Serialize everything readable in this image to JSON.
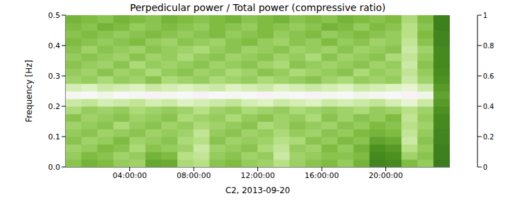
{
  "chart_data": {
    "type": "heatmap",
    "title": "Perpedicular power / Total power (compressive ratio)",
    "x_label": "C2, 2013-09-20",
    "y_label": "Frequency [Hz]",
    "xlim": [
      0,
      24
    ],
    "xticks": [
      {
        "value": 4,
        "label": "04:00:00"
      },
      {
        "value": 8,
        "label": "08:00:00"
      },
      {
        "value": 12,
        "label": "12:00:00"
      },
      {
        "value": 16,
        "label": "16:00:00"
      },
      {
        "value": 20,
        "label": "20:00:00"
      }
    ],
    "ylim": [
      0,
      0.5
    ],
    "yticks": [
      {
        "value": 0,
        "label": "0.0"
      },
      0.1,
      0.2,
      0.3,
      0.4,
      0.5
    ],
    "x": [
      0.5,
      1.5,
      2.5,
      3.5,
      4.5,
      5.5,
      6.5,
      7.5,
      8.5,
      9.5,
      10.5,
      11.5,
      12.5,
      13.5,
      14.5,
      15.5,
      16.5,
      17.5,
      18.5,
      19.5,
      20.5,
      21.5,
      22.5,
      23.5
    ],
    "y": [
      0.0125,
      0.0375,
      0.0625,
      0.0875,
      0.1125,
      0.1375,
      0.1625,
      0.1875,
      0.2125,
      0.2375,
      0.2625,
      0.2875,
      0.3125,
      0.3375,
      0.3625,
      0.3875,
      0.4125,
      0.4375,
      0.4625,
      0.4875
    ],
    "values": [
      [
        0.78,
        0.82,
        0.8,
        0.76,
        0.74,
        0.85,
        0.84,
        0.72,
        0.7,
        0.78,
        0.8,
        0.76,
        0.74,
        0.7,
        0.75,
        0.78,
        0.8,
        0.76,
        0.82,
        0.93,
        0.92,
        0.8,
        0.76,
        0.95
      ],
      [
        0.76,
        0.8,
        0.78,
        0.74,
        0.76,
        0.82,
        0.8,
        0.7,
        0.68,
        0.76,
        0.78,
        0.74,
        0.76,
        0.66,
        0.74,
        0.76,
        0.78,
        0.78,
        0.8,
        0.92,
        0.9,
        0.74,
        0.78,
        0.94
      ],
      [
        0.74,
        0.76,
        0.8,
        0.78,
        0.72,
        0.78,
        0.76,
        0.74,
        0.66,
        0.74,
        0.76,
        0.78,
        0.72,
        0.68,
        0.76,
        0.74,
        0.8,
        0.76,
        0.82,
        0.9,
        0.88,
        0.7,
        0.76,
        0.94
      ],
      [
        0.78,
        0.74,
        0.76,
        0.8,
        0.74,
        0.76,
        0.78,
        0.72,
        0.7,
        0.78,
        0.74,
        0.76,
        0.74,
        0.7,
        0.72,
        0.78,
        0.76,
        0.8,
        0.78,
        0.86,
        0.84,
        0.66,
        0.78,
        0.93
      ],
      [
        0.76,
        0.78,
        0.74,
        0.76,
        0.78,
        0.74,
        0.76,
        0.74,
        0.68,
        0.76,
        0.78,
        0.74,
        0.76,
        0.72,
        0.76,
        0.74,
        0.78,
        0.76,
        0.8,
        0.82,
        0.8,
        0.68,
        0.76,
        0.93
      ],
      [
        0.74,
        0.76,
        0.78,
        0.72,
        0.76,
        0.78,
        0.74,
        0.76,
        0.72,
        0.74,
        0.76,
        0.78,
        0.72,
        0.74,
        0.78,
        0.76,
        0.74,
        0.78,
        0.76,
        0.8,
        0.78,
        0.7,
        0.74,
        0.92
      ],
      [
        0.78,
        0.74,
        0.76,
        0.78,
        0.74,
        0.76,
        0.78,
        0.72,
        0.74,
        0.76,
        0.72,
        0.76,
        0.78,
        0.74,
        0.76,
        0.72,
        0.78,
        0.74,
        0.78,
        0.76,
        0.8,
        0.68,
        0.76,
        0.92
      ],
      [
        0.72,
        0.76,
        0.74,
        0.76,
        0.72,
        0.74,
        0.76,
        0.74,
        0.7,
        0.74,
        0.76,
        0.72,
        0.74,
        0.76,
        0.72,
        0.74,
        0.76,
        0.74,
        0.72,
        0.76,
        0.74,
        0.7,
        0.74,
        0.9
      ],
      [
        0.66,
        0.68,
        0.64,
        0.66,
        0.68,
        0.64,
        0.66,
        0.62,
        0.64,
        0.66,
        0.68,
        0.64,
        0.62,
        0.66,
        0.64,
        0.62,
        0.66,
        0.64,
        0.66,
        0.68,
        0.64,
        0.6,
        0.66,
        0.88
      ],
      [
        0.52,
        0.5,
        0.54,
        0.5,
        0.52,
        0.48,
        0.52,
        0.5,
        0.48,
        0.5,
        0.52,
        0.5,
        0.48,
        0.52,
        0.5,
        0.48,
        0.52,
        0.5,
        0.54,
        0.52,
        0.5,
        0.48,
        0.54,
        0.86
      ],
      [
        0.64,
        0.62,
        0.66,
        0.64,
        0.62,
        0.66,
        0.64,
        0.62,
        0.64,
        0.66,
        0.62,
        0.64,
        0.66,
        0.62,
        0.64,
        0.66,
        0.64,
        0.62,
        0.66,
        0.64,
        0.62,
        0.6,
        0.66,
        0.88
      ],
      [
        0.74,
        0.76,
        0.72,
        0.76,
        0.74,
        0.78,
        0.72,
        0.74,
        0.76,
        0.72,
        0.74,
        0.76,
        0.72,
        0.74,
        0.76,
        0.78,
        0.74,
        0.72,
        0.76,
        0.74,
        0.76,
        0.66,
        0.74,
        0.9
      ],
      [
        0.76,
        0.74,
        0.78,
        0.74,
        0.76,
        0.72,
        0.76,
        0.78,
        0.74,
        0.76,
        0.72,
        0.74,
        0.78,
        0.76,
        0.72,
        0.74,
        0.76,
        0.78,
        0.72,
        0.76,
        0.74,
        0.68,
        0.76,
        0.91
      ],
      [
        0.78,
        0.76,
        0.74,
        0.78,
        0.72,
        0.76,
        0.74,
        0.76,
        0.78,
        0.74,
        0.76,
        0.78,
        0.74,
        0.72,
        0.78,
        0.76,
        0.74,
        0.76,
        0.78,
        0.74,
        0.76,
        0.66,
        0.78,
        0.92
      ],
      [
        0.76,
        0.78,
        0.76,
        0.74,
        0.78,
        0.74,
        0.76,
        0.72,
        0.76,
        0.78,
        0.74,
        0.76,
        0.78,
        0.74,
        0.76,
        0.72,
        0.78,
        0.74,
        0.76,
        0.78,
        0.72,
        0.68,
        0.76,
        0.92
      ],
      [
        0.78,
        0.74,
        0.78,
        0.76,
        0.74,
        0.78,
        0.76,
        0.74,
        0.72,
        0.76,
        0.78,
        0.74,
        0.76,
        0.78,
        0.74,
        0.76,
        0.74,
        0.78,
        0.74,
        0.76,
        0.78,
        0.66,
        0.74,
        0.92
      ],
      [
        0.8,
        0.78,
        0.76,
        0.78,
        0.8,
        0.76,
        0.74,
        0.78,
        0.76,
        0.74,
        0.78,
        0.8,
        0.76,
        0.74,
        0.78,
        0.76,
        0.8,
        0.76,
        0.78,
        0.74,
        0.76,
        0.68,
        0.78,
        0.93
      ],
      [
        0.78,
        0.8,
        0.78,
        0.76,
        0.78,
        0.8,
        0.78,
        0.76,
        0.78,
        0.8,
        0.76,
        0.78,
        0.8,
        0.76,
        0.78,
        0.8,
        0.76,
        0.78,
        0.8,
        0.78,
        0.76,
        0.7,
        0.8,
        0.93
      ],
      [
        0.8,
        0.78,
        0.82,
        0.8,
        0.76,
        0.78,
        0.8,
        0.78,
        0.76,
        0.8,
        0.78,
        0.76,
        0.8,
        0.78,
        0.76,
        0.78,
        0.82,
        0.8,
        0.76,
        0.8,
        0.78,
        0.7,
        0.78,
        0.94
      ],
      [
        0.82,
        0.8,
        0.78,
        0.82,
        0.8,
        0.78,
        0.82,
        0.8,
        0.78,
        0.8,
        0.82,
        0.78,
        0.8,
        0.82,
        0.78,
        0.8,
        0.78,
        0.82,
        0.8,
        0.78,
        0.8,
        0.72,
        0.8,
        0.94
      ]
    ],
    "colorbar": {
      "range": [
        0,
        1
      ],
      "ticks": [
        0,
        0.2,
        0.4,
        0.6,
        0.8,
        1
      ]
    }
  }
}
